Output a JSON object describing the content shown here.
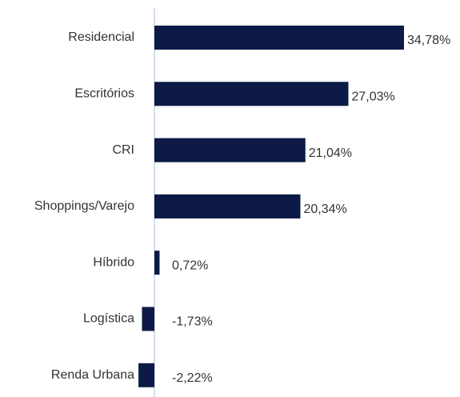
{
  "chart_data": {
    "type": "bar",
    "orientation": "horizontal",
    "categories": [
      "Residencial",
      "Escritórios",
      "CRI",
      "Shoppings/Varejo",
      "Híbrido",
      "Logística",
      "Renda Urbana"
    ],
    "values": [
      34.78,
      27.03,
      21.04,
      20.34,
      0.72,
      -1.73,
      -2.22
    ],
    "value_labels": [
      "34,78%",
      "27,03%",
      "21,04%",
      "20,34%",
      "0,72%",
      "-1,73%",
      "-2,22%"
    ],
    "color": "#0c1a45"
  }
}
